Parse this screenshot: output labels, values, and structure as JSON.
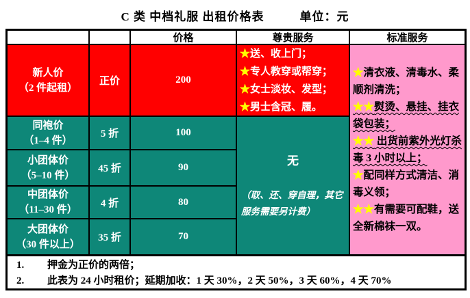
{
  "page": {
    "title": "C 类 中档礼服 出租价格表",
    "unit_label": "单位：元"
  },
  "colors": {
    "red": "#FF0000",
    "teal": "#0E8778",
    "pink": "#FF99CC",
    "star_yellow": "#FFFF00"
  },
  "table": {
    "headers": {
      "price": "价格",
      "premium": "尊贵服务",
      "standard": "标准服务"
    },
    "rows": [
      {
        "name": "新人价",
        "range": "（2 件起租）",
        "discount": "正价",
        "price": "200"
      },
      {
        "name": "同袍价",
        "range": "（1–4 件）",
        "discount": "5 折",
        "price": "100"
      },
      {
        "name": "小团体价",
        "range": "（5–10 件）",
        "discount": "45 折",
        "price": "90"
      },
      {
        "name": "中团体价",
        "range": "（11–30 件）",
        "discount": "4 折",
        "price": "80"
      },
      {
        "name": "大团体价",
        "range": "（30 件以上）",
        "discount": "35 折",
        "price": "70"
      }
    ],
    "premium_services": [
      {
        "stars": "★",
        "text": "送、收上门；"
      },
      {
        "stars": "★",
        "text": "专人教穿或帮穿；"
      },
      {
        "stars": "★",
        "text": "女士淡妆、发型；"
      },
      {
        "stars": "★",
        "text": "男士含冠、履。"
      }
    ],
    "premium_none": {
      "label": "无",
      "note": "（取、还、穿自理，其它服务需要另计费）"
    },
    "standard_services": [
      {
        "stars": "★",
        "text": "清衣液、清毒水、柔顺剂清洗；"
      },
      {
        "stars": "★★",
        "text": "熨烫、悬挂、挂衣袋包装；"
      },
      {
        "stars": "★★",
        "text": " 出货前紫外光灯杀毒 3 小时以上；"
      },
      {
        "stars": "★",
        "text": "配同样方式清洁、消毒义领；"
      },
      {
        "stars": "★★",
        "text": "有需要可配鞋，送全新棉袜一双。"
      }
    ]
  },
  "notes": [
    {
      "num": "1.",
      "text": "押金为正价的两倍；"
    },
    {
      "num": "2.",
      "text": "此表为 24 小时租价；延期加收：1 天 30%，2 天 50%，3 天 60%，4 天 70%"
    }
  ]
}
